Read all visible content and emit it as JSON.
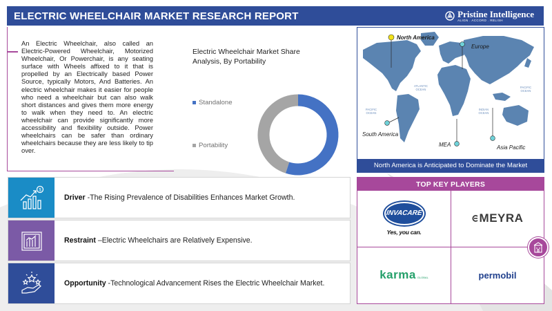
{
  "header": {
    "title": "ELECTRIC WHEELCHAIR MARKET RESEARCH REPORT",
    "logo_name": "Pristine Intelligence",
    "logo_tagline": "ALIGN . ACCORD . RELISH"
  },
  "description": "An Electric Wheelchair, also called an Electric-Powered Wheelchair, Motorized Wheelchair, Or Powerchair, is any seating surface with Wheels affixed to it that is propelled by an Electrically based Power Source, typically Motors, And Batteries. An electric wheelchair makes it easier for people who need a wheelchair but can also walk short distances and gives them more energy to walk when they need to. An electric wheelchair can provide significantly more accessibility and flexibility outside. Power wheelchairs can be safer than ordinary wheelchairs because they are less likely to tip over.",
  "chart_data": {
    "type": "pie",
    "variant": "donut",
    "title": "Electric Wheelchair Market Share Analysis, By Portability",
    "categories": [
      "Standalone",
      "Portability"
    ],
    "values": [
      55,
      45
    ],
    "colors": [
      "#4472c4",
      "#a5a5a5"
    ],
    "legend_position": "left"
  },
  "map": {
    "regions": [
      "North America",
      "Europe",
      "South America",
      "MEA",
      "Asia Pacific"
    ],
    "oceans": [
      "ATLANTIC OCEAN",
      "PACIFIC OCEAN",
      "INDIAN OCEAN",
      "PACIFIC OCEAN"
    ],
    "highlight_color": "#f2e21b",
    "marker_color": "#6fd2d9",
    "caption": "North America is Anticipated to Dominate the Market"
  },
  "factors": [
    {
      "label": "Driver",
      "text": " -The Rising Prevalence of Disabilities Enhances Market Growth.",
      "color": "#1a8cc6",
      "icon": "growth-chart-icon"
    },
    {
      "label": "Restraint",
      "text": " –Electric Wheelchairs are Relatively Expensive.",
      "color": "#7b5aa6",
      "icon": "bar-chart-icon"
    },
    {
      "label": "Opportunity",
      "text": " -Technological Advancement Rises the Electric Wheelchair Market.",
      "color": "#2f4d99",
      "icon": "hand-stars-icon"
    }
  ],
  "players": {
    "title": "TOP KEY PLAYERS",
    "logos": [
      {
        "name": "INVACARE",
        "tagline": "Yes, you can."
      },
      {
        "name": "MEYRA"
      },
      {
        "name": "karma",
        "small": "GLOBAL"
      },
      {
        "name": "permobil"
      }
    ]
  },
  "colors": {
    "primary": "#2f4d99",
    "accent": "#a7489b",
    "driver": "#1a8cc6",
    "restraint": "#7b5aa6"
  }
}
